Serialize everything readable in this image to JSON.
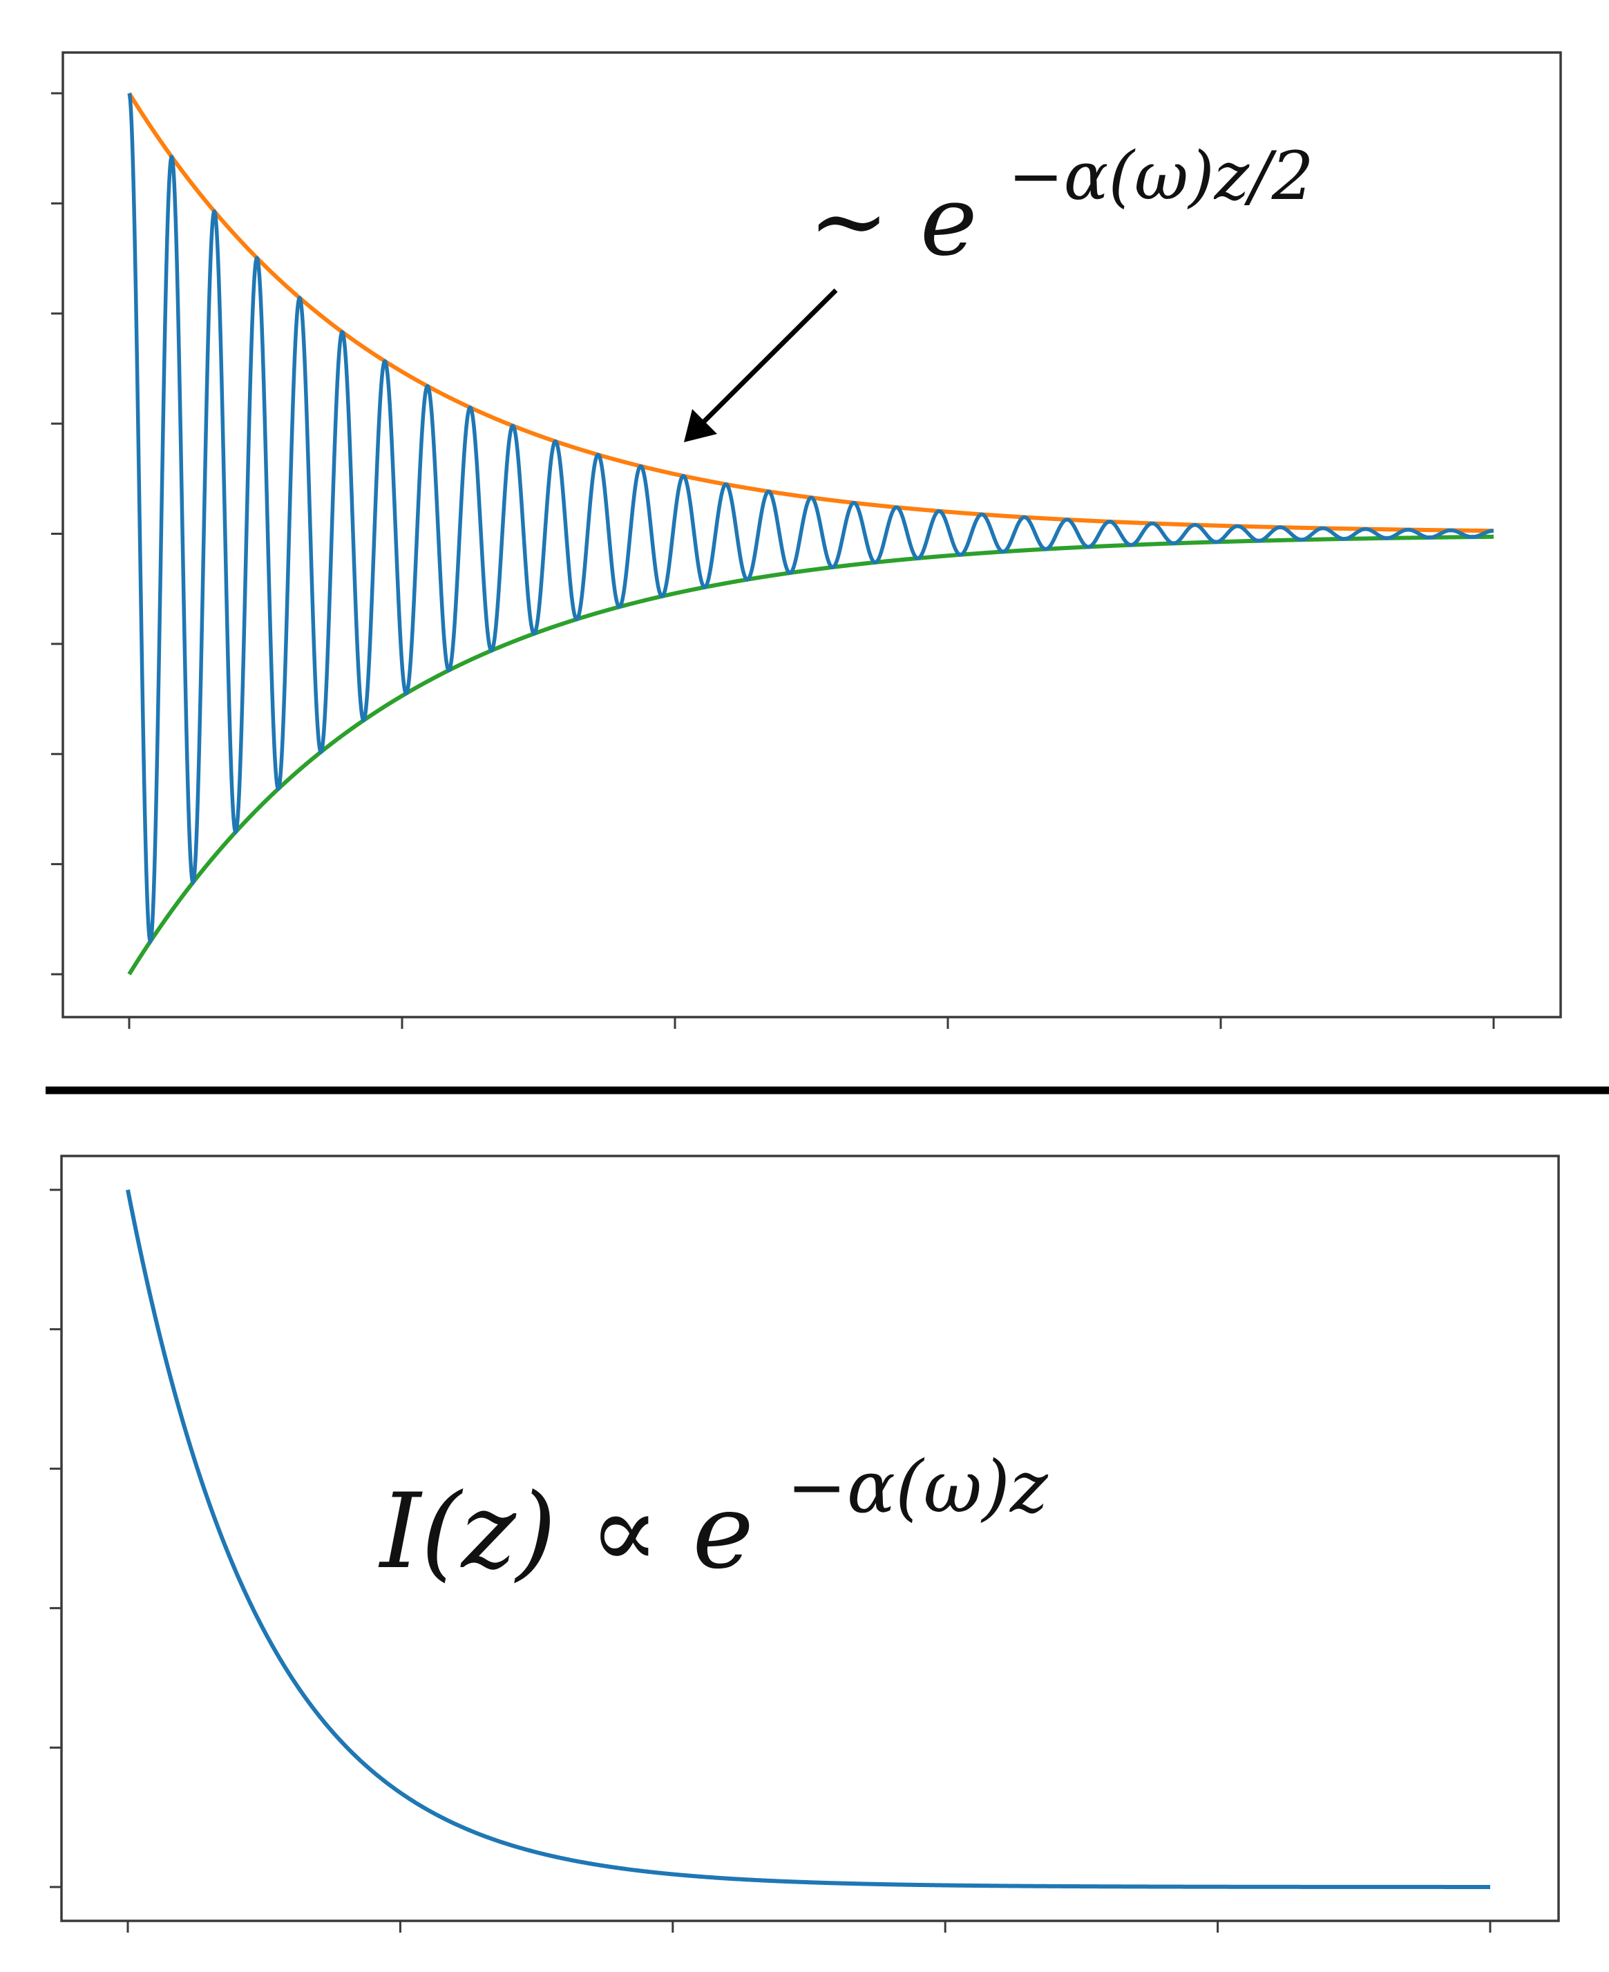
{
  "chart_data": [
    {
      "type": "line",
      "title": "",
      "xlabel": "",
      "ylabel": "",
      "xlim": [
        0,
        5
      ],
      "ylim": [
        -1,
        1
      ],
      "x_ticks": 6,
      "y_ticks": 9,
      "x_tick_labels": [],
      "y_tick_labels": [],
      "grid": false,
      "legend": "none",
      "decay_rate": 1.0,
      "oscillation_cycles": 32,
      "series": [
        {
          "key": "wave",
          "color": "#1f77b4",
          "values_formula": "cos(2*pi*32*x/5) * exp(-x)"
        },
        {
          "key": "upper_envelope",
          "color": "#ff7f0e",
          "values_formula": "exp(-x)"
        },
        {
          "key": "lower_envelope",
          "color": "#2ca02c",
          "values_formula": "-exp(-x)"
        }
      ],
      "annotations": [
        {
          "key": "envelope_label",
          "text": "∼ e",
          "exponent": "−α(ω)z/2",
          "arrow_to": {
            "x": 2.0,
            "y": 0.135
          }
        }
      ]
    },
    {
      "type": "line",
      "title": "",
      "xlabel": "",
      "ylabel": "",
      "xlim": [
        0,
        5
      ],
      "ylim": [
        0,
        1
      ],
      "x_ticks": 6,
      "y_ticks": 6,
      "x_tick_labels": [],
      "y_tick_labels": [],
      "grid": false,
      "legend": "none",
      "decay_rate": 2.0,
      "series": [
        {
          "key": "intensity",
          "color": "#1f77b4",
          "values_formula": "exp(-2*x)"
        }
      ],
      "annotations": [
        {
          "key": "intensity_label",
          "text": "I(z) ∝ e",
          "exponent": "−α(ω)z"
        }
      ]
    }
  ],
  "colors": {
    "wave": "#1f77b4",
    "upper_envelope": "#ff7f0e",
    "lower_envelope": "#2ca02c",
    "intensity": "#1f77b4",
    "arrow": "#000000",
    "frame": "#3a3a3a",
    "divider": "#000000"
  }
}
